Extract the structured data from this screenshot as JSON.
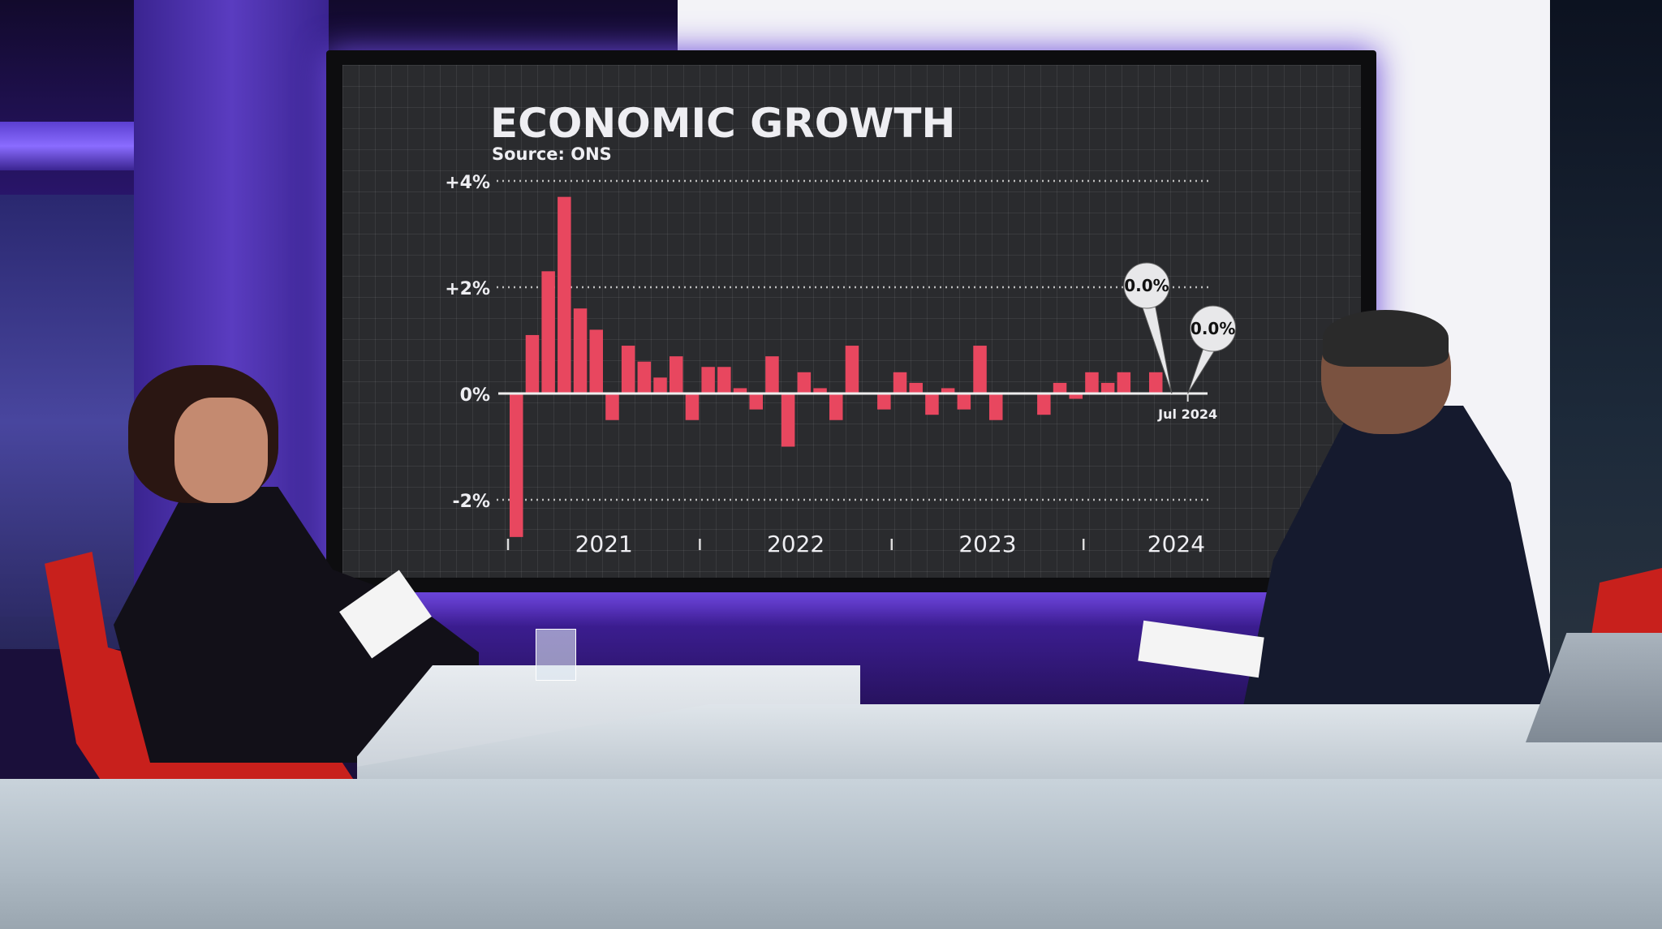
{
  "chart_data": {
    "type": "bar",
    "title": "ECONOMIC GROWTH",
    "subtitle": "Source: ONS",
    "xlabel": "",
    "ylabel": "",
    "ylim": [
      -2.8,
      4
    ],
    "y_ticks": [
      {
        "value": 4,
        "label": "+4%"
      },
      {
        "value": 2,
        "label": "+2%"
      },
      {
        "value": 0,
        "label": "0%"
      },
      {
        "value": -2,
        "label": "-2%"
      }
    ],
    "x_ticks": [
      {
        "year": "2021"
      },
      {
        "year": "2022"
      },
      {
        "year": "2023"
      },
      {
        "year": "2024"
      }
    ],
    "grid": true,
    "x": [
      "2021-01",
      "2021-02",
      "2021-03",
      "2021-04",
      "2021-05",
      "2021-06",
      "2021-07",
      "2021-08",
      "2021-09",
      "2021-10",
      "2021-11",
      "2021-12",
      "2022-01",
      "2022-02",
      "2022-03",
      "2022-04",
      "2022-05",
      "2022-06",
      "2022-07",
      "2022-08",
      "2022-09",
      "2022-10",
      "2022-11",
      "2022-12",
      "2023-01",
      "2023-02",
      "2023-03",
      "2023-04",
      "2023-05",
      "2023-06",
      "2023-07",
      "2023-08",
      "2023-09",
      "2023-10",
      "2023-11",
      "2023-12",
      "2024-01",
      "2024-02",
      "2024-03",
      "2024-04",
      "2024-05",
      "2024-06",
      "2024-07"
    ],
    "values": [
      -2.7,
      1.1,
      2.3,
      3.7,
      1.6,
      1.2,
      -0.5,
      0.9,
      0.6,
      0.3,
      0.7,
      -0.5,
      0.5,
      0.5,
      0.1,
      -0.3,
      0.7,
      -1.0,
      0.4,
      0.1,
      -0.5,
      0.9,
      0.0,
      -0.3,
      0.4,
      0.2,
      -0.4,
      0.1,
      -0.3,
      0.9,
      -0.5,
      0.0,
      0.0,
      -0.4,
      0.2,
      -0.1,
      0.4,
      0.2,
      0.4,
      0.0,
      0.4,
      0.0,
      0.0
    ],
    "bar_color": "#e8475f",
    "annotations": [
      {
        "x": "2024-06",
        "label": "0.0%"
      },
      {
        "x": "2024-07",
        "label": "0.0%"
      }
    ],
    "end_label": "Jul 2024"
  },
  "colors": {
    "studio_purple": "#3a1f8f",
    "screen_bg": "#2a2b2e",
    "chair_red": "#c8201c"
  }
}
